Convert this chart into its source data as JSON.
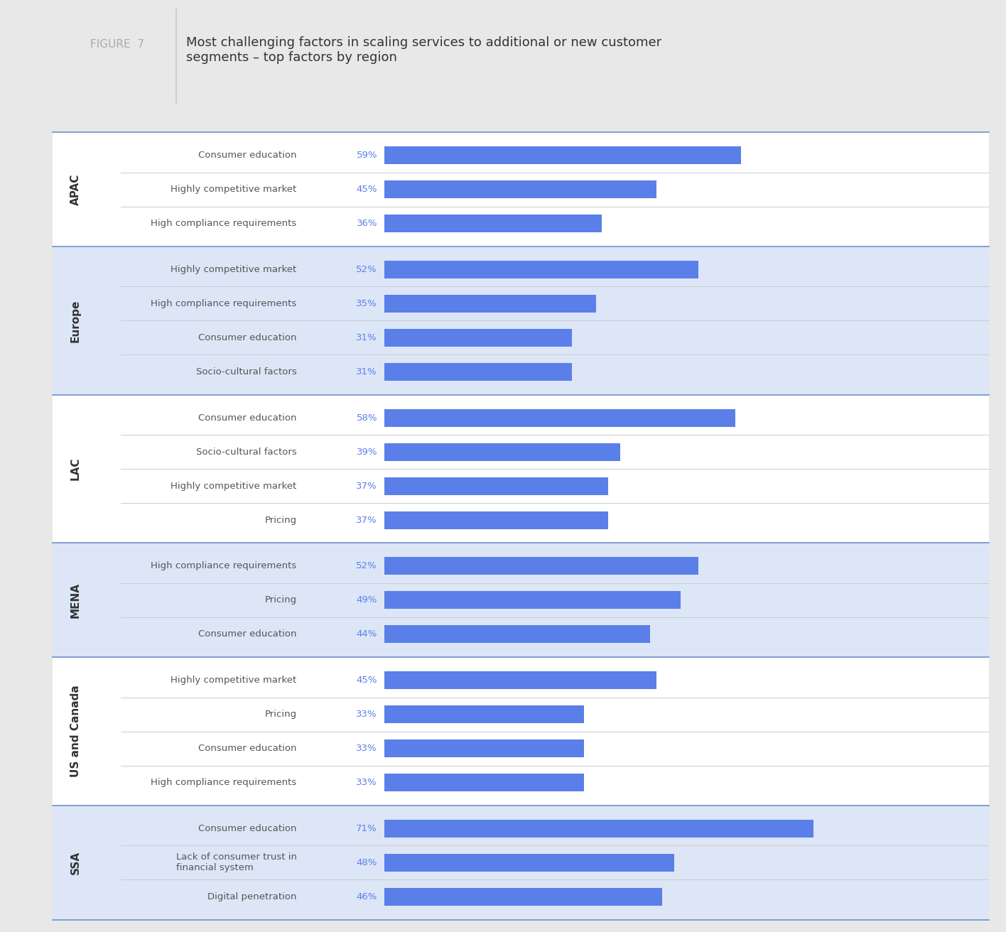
{
  "title": "Most challenging factors in scaling services to additional or new customer\nsegments – top factors by region",
  "figure_label": "FIGURE  7",
  "regions": [
    {
      "name": "APAC",
      "bg_color": "#ffffff",
      "items": [
        {
          "label": "Consumer education",
          "value": 59
        },
        {
          "label": "Highly competitive market",
          "value": 45
        },
        {
          "label": "High compliance requirements",
          "value": 36
        }
      ]
    },
    {
      "name": "Europe",
      "bg_color": "#dce6f7",
      "items": [
        {
          "label": "Highly competitive market",
          "value": 52
        },
        {
          "label": "High compliance requirements",
          "value": 35
        },
        {
          "label": "Consumer education",
          "value": 31
        },
        {
          "label": "Socio-cultural factors",
          "value": 31
        }
      ]
    },
    {
      "name": "LAC",
      "bg_color": "#ffffff",
      "items": [
        {
          "label": "Consumer education",
          "value": 58
        },
        {
          "label": "Socio-cultural factors",
          "value": 39
        },
        {
          "label": "Highly competitive market",
          "value": 37
        },
        {
          "label": "Pricing",
          "value": 37
        }
      ]
    },
    {
      "name": "MENA",
      "bg_color": "#dce6f7",
      "items": [
        {
          "label": "High compliance requirements",
          "value": 52
        },
        {
          "label": "Pricing",
          "value": 49
        },
        {
          "label": "Consumer education",
          "value": 44
        }
      ]
    },
    {
      "name": "US and Canada",
      "bg_color": "#ffffff",
      "items": [
        {
          "label": "Highly competitive market",
          "value": 45
        },
        {
          "label": "Pricing",
          "value": 33
        },
        {
          "label": "Consumer education",
          "value": 33
        },
        {
          "label": "High compliance requirements",
          "value": 33
        }
      ]
    },
    {
      "name": "SSA",
      "bg_color": "#dce6f7",
      "items": [
        {
          "label": "Consumer education",
          "value": 71
        },
        {
          "label": "Lack of consumer trust in\nfinancial system",
          "value": 48
        },
        {
          "label": "Digital penetration",
          "value": 46
        }
      ]
    }
  ],
  "bar_color": "#5b7fe8",
  "text_color_label": "#555555",
  "text_color_value": "#5b7fe8",
  "region_label_color": "#333333",
  "separator_color": "#cccccc",
  "outer_bg": "#e8e8e8",
  "chart_bg": "#f0f0f0",
  "panel_bg_white": "#ffffff",
  "title_color": "#333333",
  "figure_label_color": "#aaaaaa",
  "border_color": "#7090cc"
}
